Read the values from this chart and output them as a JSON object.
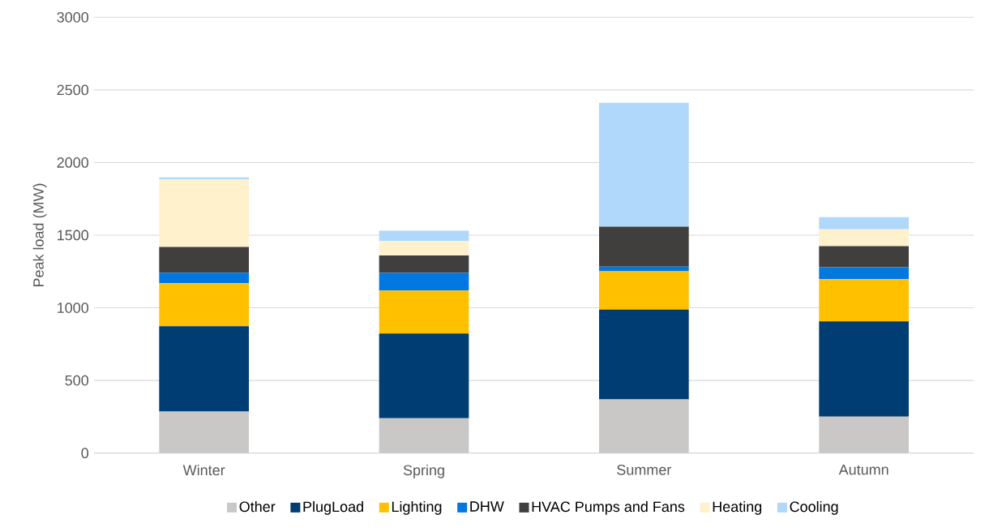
{
  "chart_data": {
    "type": "bar",
    "stacked": true,
    "ylabel": "Peak load (MW)",
    "categories": [
      "Winter",
      "Spring",
      "Summer",
      "Autumn"
    ],
    "ylim": [
      0,
      3000
    ],
    "yticks": [
      0,
      500,
      1000,
      1500,
      2000,
      2500,
      3000
    ],
    "grid": "y",
    "legend": "bottom",
    "series": [
      {
        "name": "Other",
        "color": "#c9c8c7",
        "values": [
          285,
          240,
          370,
          251
        ]
      },
      {
        "name": "PlugLoad",
        "color": "#003d73",
        "values": [
          588,
          583,
          617,
          656
        ]
      },
      {
        "name": "Lighting",
        "color": "#ffc000",
        "values": [
          296,
          296,
          264,
          290
        ]
      },
      {
        "name": "DHW",
        "color": "#0078e0",
        "values": [
          73,
          121,
          32,
          82
        ]
      },
      {
        "name": "HVAC Pumps and Fans",
        "color": "#403f3d",
        "values": [
          177,
          121,
          276,
          146
        ]
      },
      {
        "name": "Heating",
        "color": "#fff1cc",
        "values": [
          465,
          99,
          0,
          115
        ]
      },
      {
        "name": "Cooling",
        "color": "#afd8fb",
        "values": [
          14,
          71,
          853,
          84
        ]
      }
    ]
  }
}
